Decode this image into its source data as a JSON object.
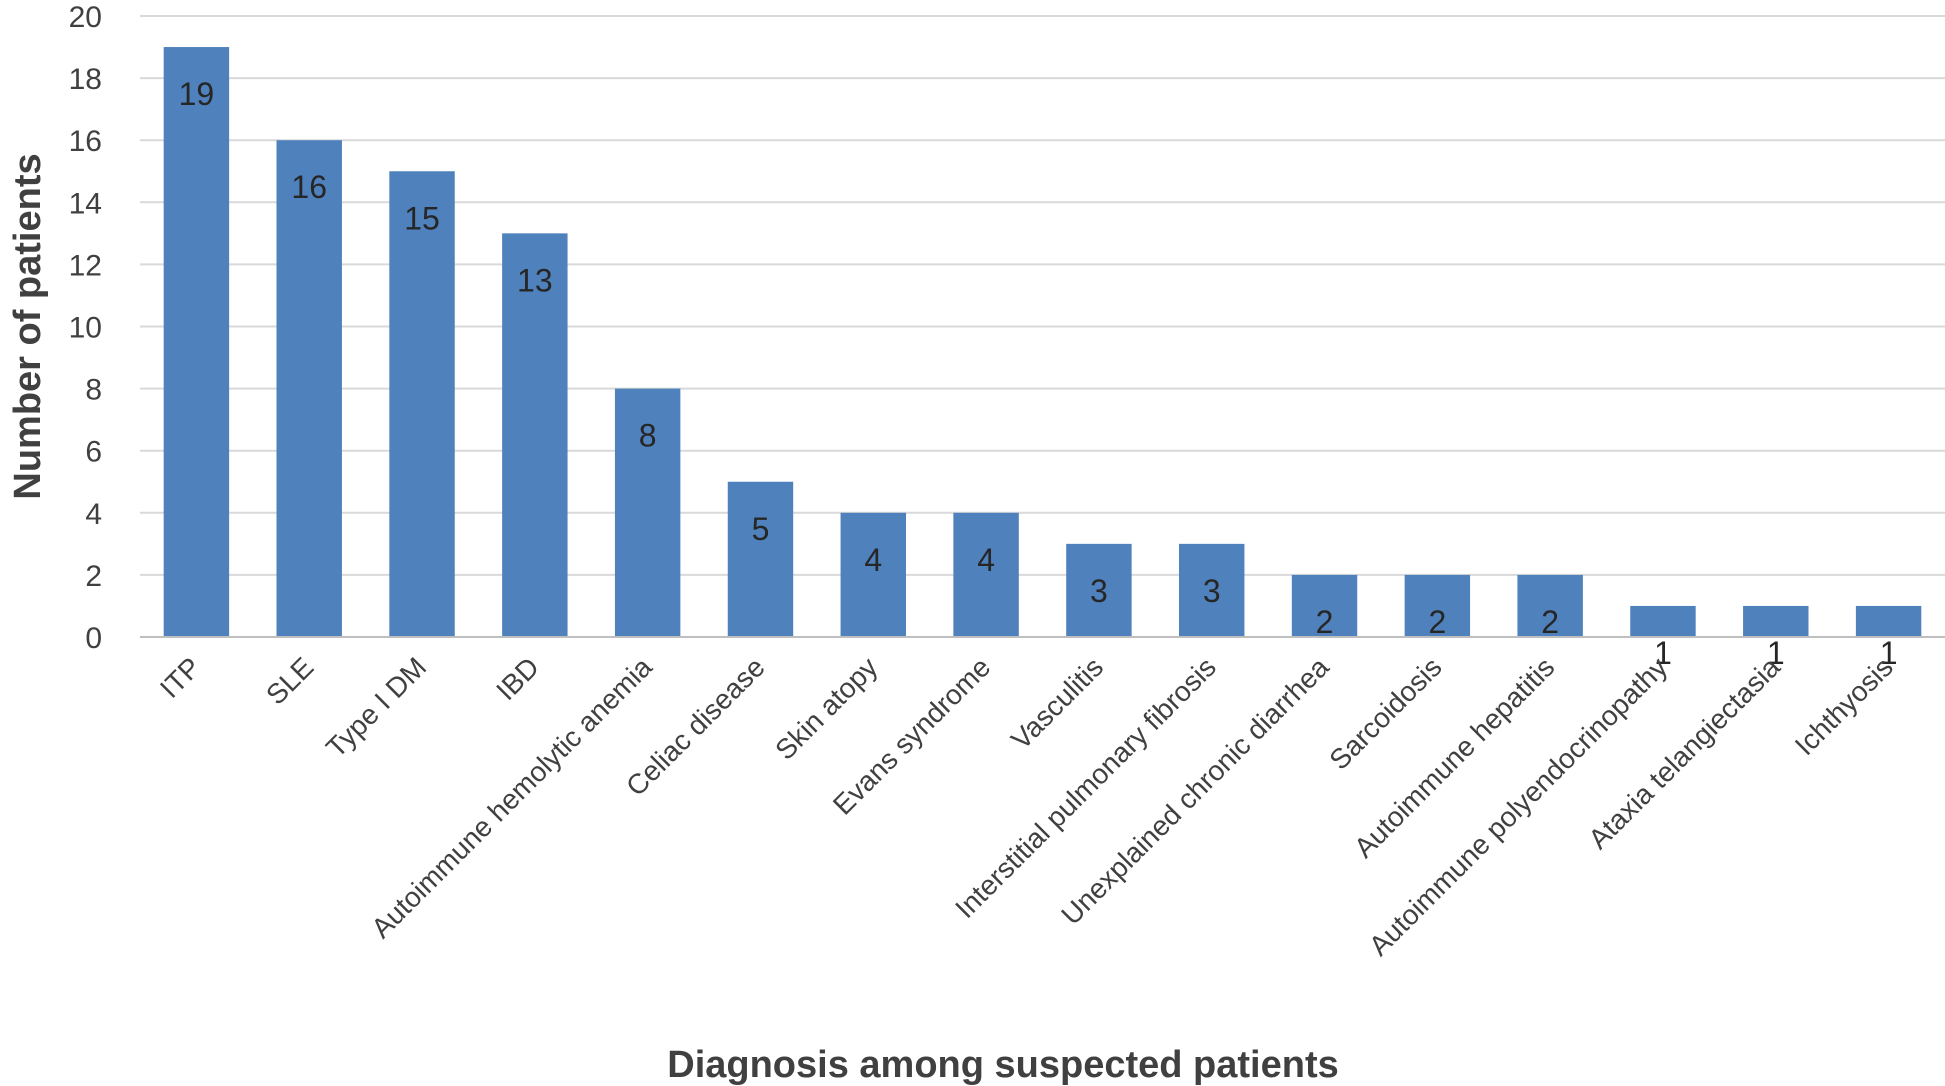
{
  "chart_data": {
    "type": "bar",
    "categories": [
      "ITP",
      "SLE",
      "Type I DM",
      "IBD",
      "Autoimmune hemolytic anemia",
      "Celiac disease",
      "Skin atopy",
      "Evans syndrome",
      "Vasculitis",
      "Interstitial pulmonary fibrosis",
      "Unexplained chronic diarrhea",
      "Sarcoidosis",
      "Autoimmune hepatitis",
      "Autoimmune polyendocrinopathy",
      "Ataxia telangiectasia",
      "Ichthyosis"
    ],
    "values": [
      19,
      16,
      15,
      13,
      8,
      5,
      4,
      4,
      3,
      3,
      2,
      2,
      2,
      1,
      1,
      1
    ],
    "data_labels": [
      "19",
      "16",
      "15",
      "13",
      "8",
      "5",
      "4",
      "4",
      "3",
      "3",
      "2",
      "2",
      "2",
      "1",
      "1",
      "1"
    ],
    "title": "",
    "xlabel": "Diagnosis among suspected patients",
    "ylabel": "Number of patients",
    "ylim": [
      0,
      20
    ],
    "yticks": [
      0,
      2,
      4,
      6,
      8,
      10,
      12,
      14,
      16,
      18,
      20
    ],
    "ytick_labels": [
      "0",
      "2",
      "4",
      "6",
      "8",
      "10",
      "12",
      "14",
      "16",
      "18",
      "20"
    ],
    "grid": true,
    "legend": "none",
    "bar_color": "#4f81bd"
  }
}
